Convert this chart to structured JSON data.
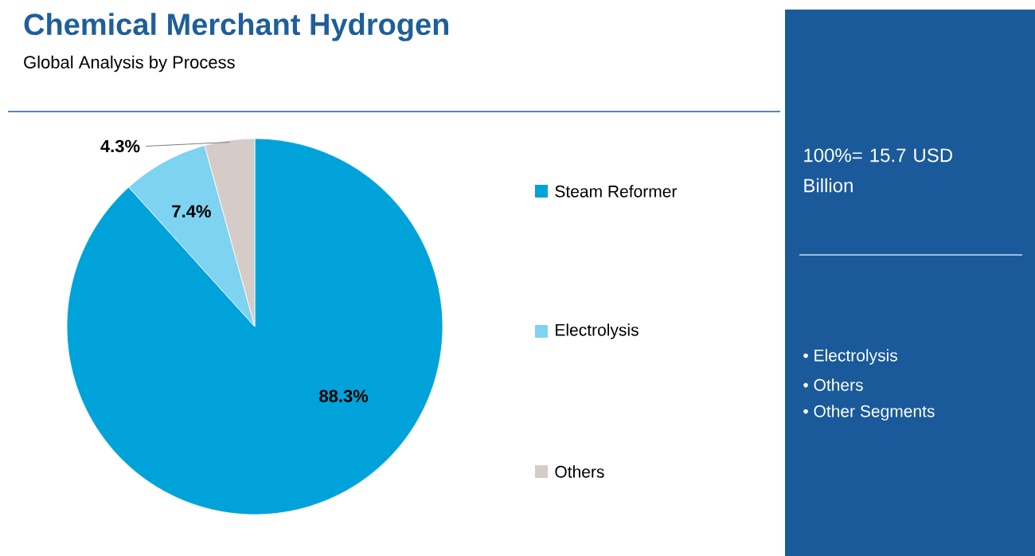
{
  "chart_data": {
    "type": "pie",
    "title": "Chemical Merchant Hydrogen",
    "subtitle": "Global Analysis by Process",
    "categories": [
      "Steam Reformer",
      "Electrolysis",
      "Others"
    ],
    "values": [
      88.3,
      7.4,
      4.3
    ],
    "colors": [
      "#00a3d9",
      "#7dd3f0",
      "#d5ccc7"
    ],
    "value_labels": [
      "88.3%",
      "7.4%",
      "4.3%"
    ],
    "legend": "right",
    "annotations": [
      "100%= 15.7 USD Billion",
      "• Electrolysis",
      "• Others",
      "• Other Segments"
    ]
  }
}
